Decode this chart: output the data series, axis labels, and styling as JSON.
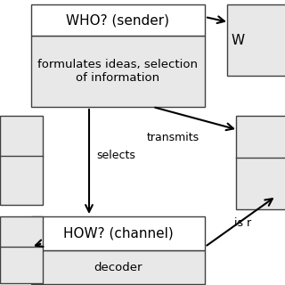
{
  "bg_color": "#ffffff",
  "box_edge_color": "#404040",
  "box_fill_white": "#ffffff",
  "box_fill_gray": "#e8e8e8",
  "who_title": "WHO? (sender)",
  "who_sub": "formulates ideas, selection\nof information",
  "how_title": "HOW? (channel)",
  "how_sub": "decoder",
  "label_transmits": "transmits",
  "label_selects": "selects",
  "label_is_r": "is r",
  "text_color": "#000000",
  "arrow_color": "#000000",
  "title_fontsize": 11,
  "sub_fontsize": 9.5,
  "label_fontsize": 9
}
